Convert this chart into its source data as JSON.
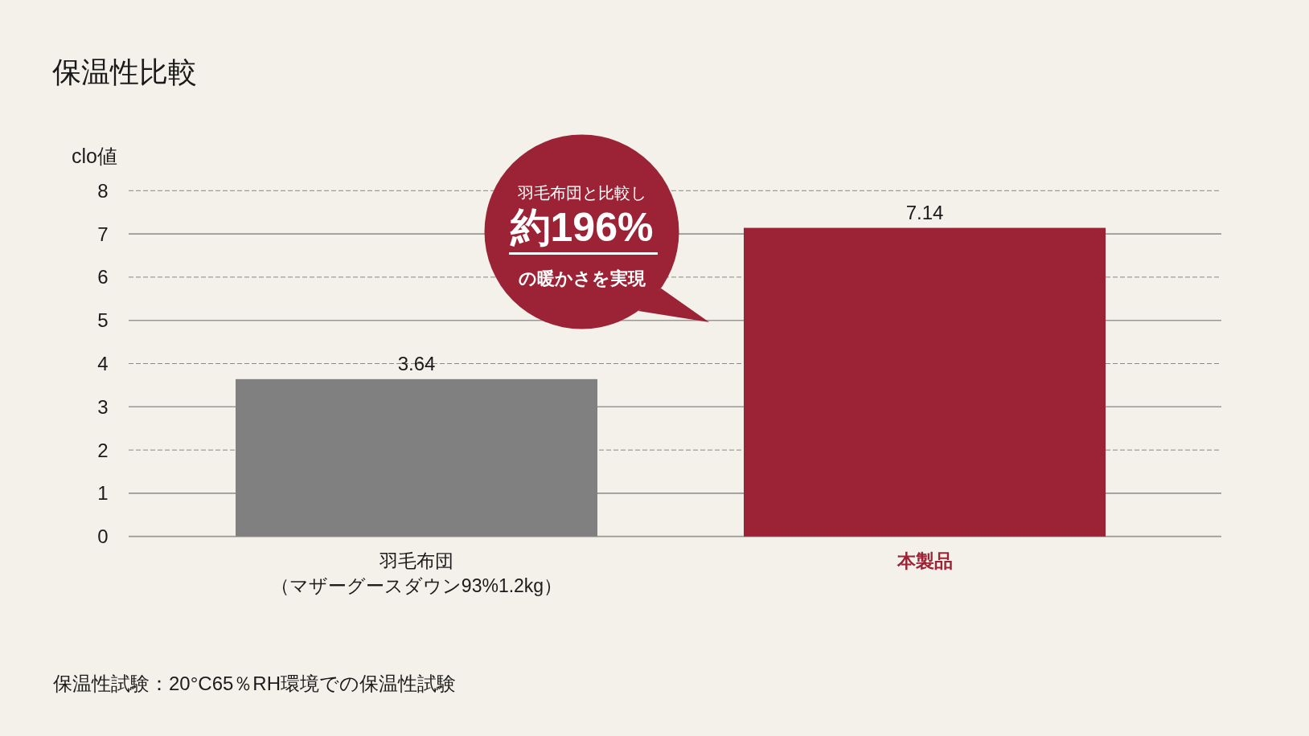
{
  "chart_data": {
    "type": "bar",
    "title": "保温性比較",
    "ylabel": "clo値",
    "categories": [
      "羽毛布団（マザーグースダウン93%1.2kg）",
      "本製品"
    ],
    "values": [
      3.64,
      7.14
    ],
    "colors": [
      "#808080",
      "#9b2335"
    ],
    "ylim": [
      0,
      8
    ],
    "yticks": [
      0,
      1,
      2,
      3,
      4,
      5,
      6,
      7,
      8
    ],
    "grid": "y",
    "data_labels": true,
    "annotations": [
      "羽毛布団と比較し",
      "約196%",
      "の暖かさを実現",
      "保温性試験：20°C65％RH環境での保温性試験"
    ]
  }
}
